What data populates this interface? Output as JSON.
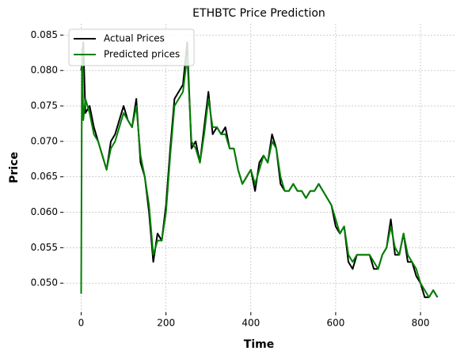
{
  "chart_data": {
    "type": "line",
    "title": "ETHBTC Price Prediction",
    "x_label": "Time",
    "y_label": "Price",
    "x": [
      0,
      2,
      5,
      10,
      20,
      30,
      40,
      50,
      60,
      70,
      80,
      90,
      100,
      110,
      120,
      130,
      140,
      150,
      160,
      170,
      180,
      190,
      200,
      210,
      220,
      230,
      240,
      250,
      260,
      270,
      280,
      290,
      300,
      310,
      320,
      330,
      340,
      350,
      360,
      370,
      380,
      390,
      400,
      410,
      420,
      430,
      440,
      450,
      460,
      470,
      480,
      490,
      500,
      510,
      520,
      530,
      540,
      550,
      560,
      570,
      580,
      590,
      600,
      610,
      620,
      630,
      640,
      650,
      660,
      670,
      680,
      690,
      700,
      710,
      720,
      730,
      740,
      750,
      760,
      770,
      780,
      790,
      800,
      810,
      820,
      830,
      840
    ],
    "series": [
      {
        "name": "Actual Prices",
        "color": "#000000",
        "values": [
          0.08,
          0.081,
          0.084,
          0.074,
          0.075,
          0.072,
          0.07,
          0.068,
          0.066,
          0.07,
          0.071,
          0.073,
          0.075,
          0.073,
          0.072,
          0.076,
          0.067,
          0.065,
          0.06,
          0.053,
          0.057,
          0.056,
          0.061,
          0.069,
          0.076,
          0.077,
          0.078,
          0.084,
          0.069,
          0.07,
          0.067,
          0.072,
          0.077,
          0.071,
          0.072,
          0.071,
          0.072,
          0.069,
          0.069,
          0.066,
          0.064,
          0.065,
          0.066,
          0.063,
          0.067,
          0.068,
          0.067,
          0.071,
          0.069,
          0.064,
          0.063,
          0.063,
          0.064,
          0.063,
          0.063,
          0.062,
          0.063,
          0.063,
          0.064,
          0.063,
          0.062,
          0.061,
          0.058,
          0.057,
          0.058,
          0.053,
          0.052,
          0.054,
          0.054,
          0.054,
          0.054,
          0.052,
          0.052,
          0.054,
          0.055,
          0.059,
          0.054,
          0.054,
          0.057,
          0.053,
          0.053,
          0.051,
          0.05,
          0.048,
          0.048,
          0.049,
          0.048
        ]
      },
      {
        "name": "Predicted prices",
        "color": "#008000",
        "values": [
          0.0485,
          0.083,
          0.073,
          0.076,
          0.074,
          0.071,
          0.07,
          0.068,
          0.066,
          0.069,
          0.07,
          0.072,
          0.074,
          0.073,
          0.072,
          0.075,
          0.068,
          0.065,
          0.061,
          0.054,
          0.056,
          0.056,
          0.06,
          0.068,
          0.075,
          0.076,
          0.077,
          0.082,
          0.07,
          0.069,
          0.067,
          0.071,
          0.076,
          0.072,
          0.072,
          0.071,
          0.071,
          0.069,
          0.069,
          0.066,
          0.064,
          0.065,
          0.066,
          0.064,
          0.066,
          0.068,
          0.067,
          0.07,
          0.069,
          0.065,
          0.063,
          0.063,
          0.064,
          0.063,
          0.063,
          0.062,
          0.063,
          0.063,
          0.064,
          0.063,
          0.062,
          0.061,
          0.059,
          0.057,
          0.058,
          0.054,
          0.053,
          0.054,
          0.054,
          0.054,
          0.054,
          0.053,
          0.052,
          0.054,
          0.055,
          0.058,
          0.055,
          0.054,
          0.057,
          0.054,
          0.053,
          0.052,
          0.05,
          0.049,
          0.048,
          0.049,
          0.048
        ]
      }
    ],
    "xlim": [
      -42,
      882
    ],
    "xticks": [
      0,
      200,
      400,
      600,
      800
    ],
    "ylim": [
      0.0459,
      0.0866
    ],
    "yticks": [
      {
        "value": 0.05,
        "label": "0.050"
      },
      {
        "value": 0.055,
        "label": "0.055"
      },
      {
        "value": 0.06,
        "label": "0.060"
      },
      {
        "value": 0.065,
        "label": "0.065"
      },
      {
        "value": 0.07,
        "label": "0.070"
      },
      {
        "value": 0.075,
        "label": "0.075"
      },
      {
        "value": 0.08,
        "label": "0.080"
      },
      {
        "value": 0.085,
        "label": "0.085"
      }
    ],
    "grid": true,
    "legend": "upper-left"
  }
}
